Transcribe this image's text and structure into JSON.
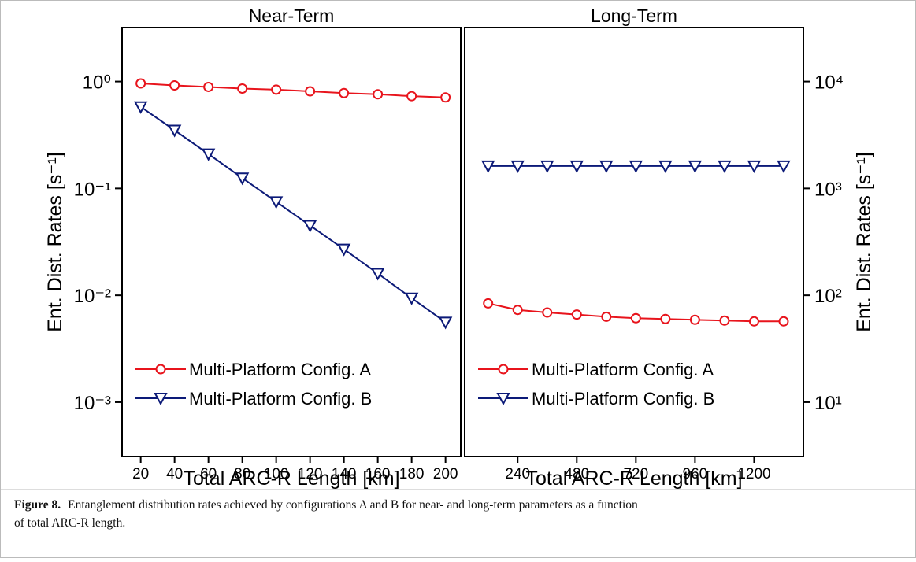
{
  "chart_data": [
    {
      "type": "line",
      "title": "Near-Term",
      "x_label": "Total ARC-R Length [km]",
      "y_label": "Ent. Dist. Rates [s⁻¹]",
      "x": [
        20,
        40,
        60,
        80,
        100,
        120,
        140,
        160,
        180,
        200
      ],
      "series": [
        {
          "name": "Multi-Platform Config. A",
          "color": "#e8141c",
          "marker": "circle",
          "values": [
            0.96,
            0.92,
            0.89,
            0.86,
            0.84,
            0.81,
            0.78,
            0.76,
            0.73,
            0.71
          ]
        },
        {
          "name": "Multi-Platform Config. B",
          "color": "#0c1a78",
          "marker": "triangle-down",
          "values": [
            0.58,
            0.35,
            0.21,
            0.125,
            0.075,
            0.045,
            0.027,
            0.016,
            0.0094,
            0.0056
          ]
        }
      ],
      "xlim": [
        9,
        209
      ],
      "xticks": [
        20,
        40,
        60,
        80,
        100,
        120,
        140,
        160,
        180,
        200
      ],
      "ylim": [
        0.00031,
        3.2
      ],
      "ylog": true,
      "yticks": [
        {
          "value": 0.001,
          "label": "10⁻³"
        },
        {
          "value": 0.01,
          "label": "10⁻²"
        },
        {
          "value": 0.1,
          "label": "10⁻¹"
        },
        {
          "value": 1,
          "label": "10⁰"
        }
      ],
      "legend": "lower left"
    },
    {
      "type": "line",
      "title": "Long-Term",
      "x_label": "Total ARC-R Length [km]",
      "y_label": "Ent. Dist. Rates [s⁻¹]",
      "x": [
        120,
        240,
        360,
        480,
        600,
        720,
        840,
        960,
        1080,
        1200,
        1320
      ],
      "series": [
        {
          "name": "Multi-Platform Config. A",
          "color": "#e8141c",
          "marker": "circle",
          "axis": "y2",
          "values": [
            84,
            73,
            69,
            66,
            63,
            61,
            60,
            59,
            58,
            57,
            57
          ]
        },
        {
          "name": "Multi-Platform Config. B",
          "color": "#0c1a78",
          "marker": "triangle-down",
          "axis": "y2",
          "values": [
            1620,
            1620,
            1620,
            1620,
            1620,
            1620,
            1620,
            1620,
            1620,
            1620,
            1620
          ]
        }
      ],
      "xlim": [
        25,
        1400
      ],
      "xticks": [
        240,
        480,
        720,
        960,
        1200
      ],
      "y2lim": [
        3.1,
        32000
      ],
      "ylog": true,
      "y2ticks": [
        {
          "value": 10,
          "label": "10¹"
        },
        {
          "value": 100,
          "label": "10²"
        },
        {
          "value": 1000,
          "label": "10³"
        },
        {
          "value": 10000,
          "label": "10⁴"
        }
      ],
      "legend": "lower left"
    }
  ],
  "caption": {
    "label": "Figure 8.",
    "line1": "Entanglement distribution rates achieved by configurations A and B for near- and long-term parameters as a function",
    "line2": "of total ARC-R length."
  }
}
